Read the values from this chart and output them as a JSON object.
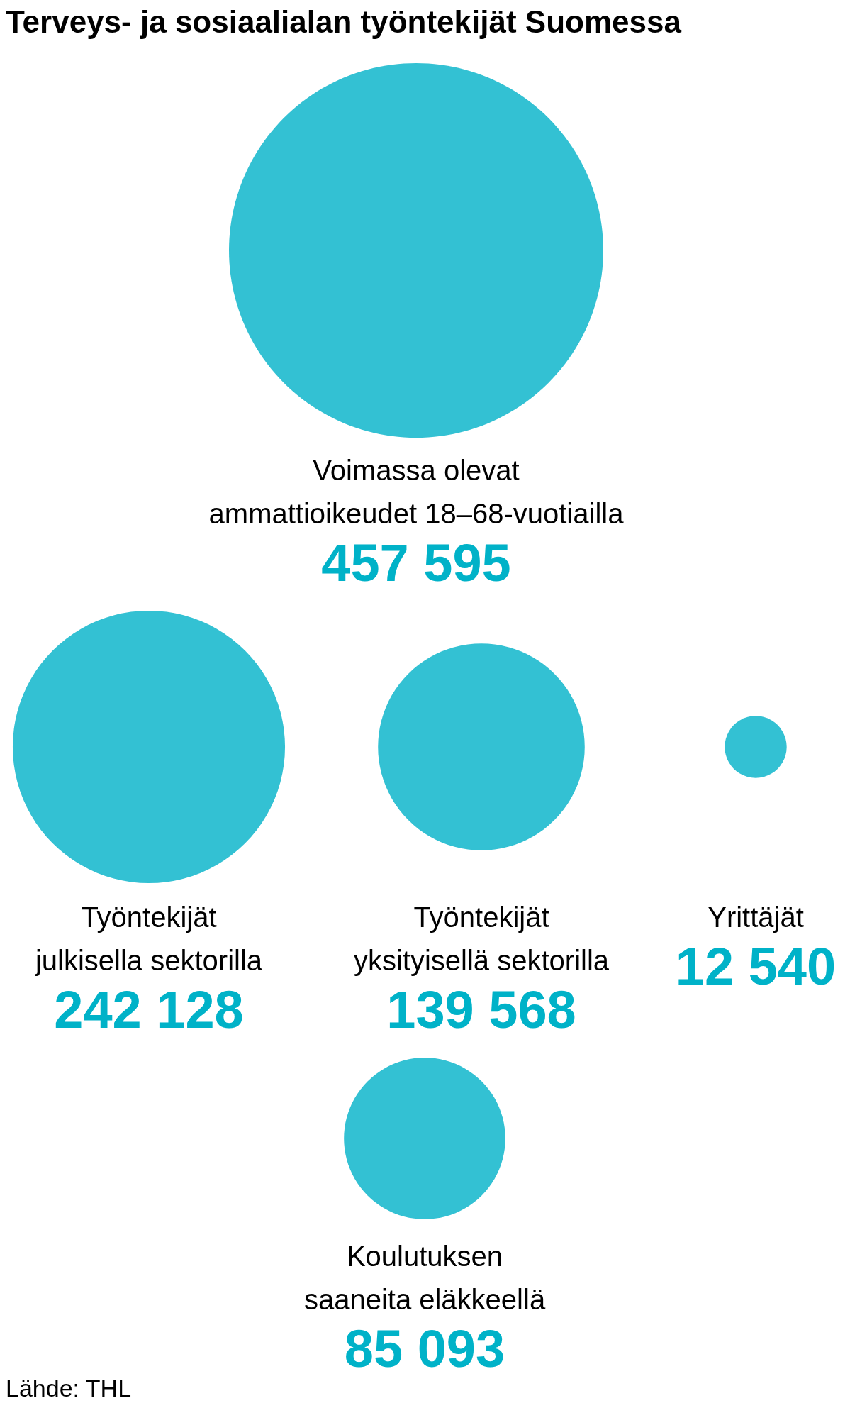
{
  "chart_data": {
    "type": "other",
    "title": "Terveys- ja sosiaalialan työntekijät Suomessa",
    "categories": [
      "Voimassa olevat\nammattioikeudet 18–68-vuotiailla",
      "Työntekijät\njulkisella sektorilla",
      "Työntekijät\nyksityisellä sektorilla",
      "Yrittäjät",
      "Koulutuksen\nsaaneita eläkkeellä"
    ],
    "values": [
      457595,
      242128,
      139568,
      12540,
      85093
    ],
    "value_labels": [
      "457 595",
      "242 128",
      "139 568",
      "12 540",
      "85 093"
    ],
    "color": "#00b2c8",
    "annotations": [
      "Lähde: THL"
    ]
  }
}
